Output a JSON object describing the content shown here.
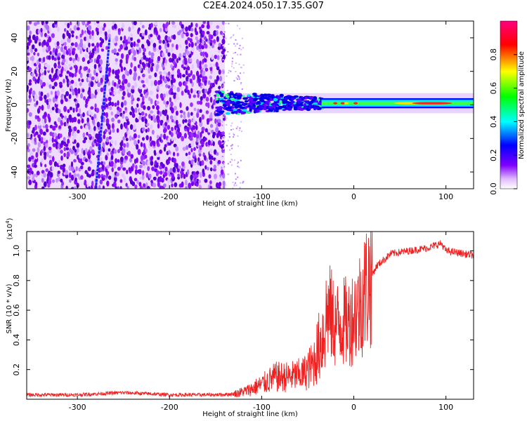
{
  "title": "C2E4.2024.050.17.35.G07",
  "chart_data": [
    {
      "type": "heatmap",
      "title": "C2E4.2024.050.17.35.G07",
      "xlabel": "Height of straight line (km)",
      "ylabel": "Frequency (Hz)",
      "xlim": [
        -355,
        130
      ],
      "ylim": [
        -50,
        50
      ],
      "xticks": [
        -300,
        -200,
        -100,
        0,
        100
      ],
      "yticks": [
        -40,
        -20,
        0,
        20,
        40
      ],
      "colorbar": {
        "label": "Normalized spectral amplitude",
        "range": [
          0,
          1
        ],
        "ticks": [
          0.0,
          0.2,
          0.4,
          0.6,
          0.8
        ],
        "colors": [
          "#ffffff",
          "#8000ff",
          "#0000ff",
          "#00ffff",
          "#00ff00",
          "#ffff00",
          "#ff0000",
          "#ff0080"
        ]
      },
      "features": {
        "noise_region_x": [
          -355,
          -140
        ],
        "signal_start_x": -150,
        "signal_frequency_hz": 1,
        "diagonal_streak": {
          "x_start": -280,
          "y_start": -50,
          "x_end": -265,
          "y_end": 40
        }
      }
    },
    {
      "type": "line",
      "xlabel": "Height of straight line (km)",
      "ylabel": "SNR (10 * v/v)",
      "yscale_label": "(x10",
      "yscale_exp": "4",
      "xlim": [
        -355,
        130
      ],
      "ylim": [
        0.0,
        11300
      ],
      "xticks": [
        -300,
        -200,
        -100,
        0,
        100
      ],
      "yticks": [
        0.2,
        0.4,
        0.6,
        0.8,
        1.0
      ],
      "color": "#ee2020",
      "series": [
        {
          "x": [
            -355,
            -300,
            -250,
            -200,
            -150,
            -130,
            -115,
            -100,
            -85,
            -70,
            -55,
            -45,
            -35,
            -28,
            -20,
            -12,
            -5,
            5,
            15,
            25,
            40,
            60,
            80,
            95,
            100,
            110,
            120,
            130
          ],
          "y": [
            300,
            300,
            450,
            300,
            300,
            350,
            600,
            1000,
            1500,
            1500,
            1700,
            2300,
            4000,
            6000,
            5000,
            5200,
            5200,
            6200,
            7800,
            9000,
            9800,
            10000,
            10200,
            10500,
            10000,
            9900,
            9800,
            9700
          ]
        }
      ]
    }
  ]
}
